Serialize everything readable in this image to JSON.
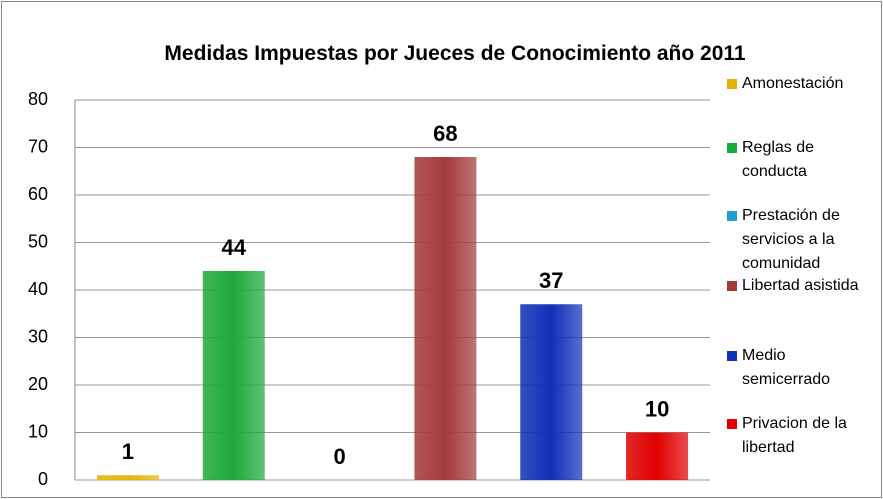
{
  "chart_data": {
    "type": "bar",
    "title": "Medidas Impuestas por Jueces de Conocimiento año 2011",
    "categories": [
      "Amonestación",
      "Reglas de conducta",
      "Prestación de servicios a  la comunidad",
      "Libertad asistida",
      "Medio semicerrado",
      "Privacion de la libertad"
    ],
    "values": [
      1,
      44,
      0,
      68,
      37,
      10
    ],
    "colors": [
      "#e6b400",
      "#1fa83a",
      "#1aa0d8",
      "#a33a3a",
      "#1030b8",
      "#e00000"
    ],
    "ylim": [
      0,
      80
    ],
    "yticks": [
      0,
      10,
      20,
      30,
      40,
      50,
      60,
      70,
      80
    ],
    "grid": true,
    "legend": "right"
  }
}
